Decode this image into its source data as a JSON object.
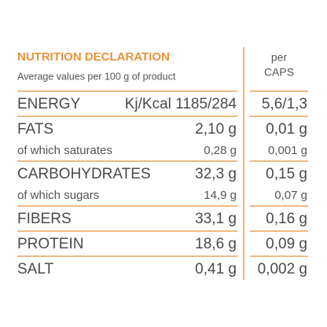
{
  "header": {
    "title": "NUTRITION DECLARATION",
    "subtitle": "Average values per 100 g of product",
    "column": [
      "per",
      "CAPS"
    ]
  },
  "groups": [
    {
      "rows": [
        {
          "label": "ENERGY",
          "value": "Kj/Kcal 1185/284",
          "caps": "5,6/1,3"
        }
      ]
    },
    {
      "rows": [
        {
          "label": "FATS",
          "value": "2,10 g",
          "caps": "0,01 g"
        },
        {
          "label": "of which saturates",
          "value": "0,28 g",
          "caps": "0,001 g"
        }
      ]
    },
    {
      "rows": [
        {
          "label": "CARBOHYDRATES",
          "value": "32,3 g",
          "caps": "0,15 g"
        },
        {
          "label": "of which sugars",
          "value": "14,9 g",
          "caps": "0,07 g"
        }
      ]
    },
    {
      "rows": [
        {
          "label": "FIBERS",
          "value": "33,1 g",
          "caps": "0,16 g"
        }
      ]
    },
    {
      "rows": [
        {
          "label": "PROTEIN",
          "value": "18,6 g",
          "caps": "0,09 g"
        }
      ]
    },
    {
      "rows": [
        {
          "label": "SALT",
          "value": "0,41 g",
          "caps": "0,002 g"
        }
      ]
    }
  ]
}
